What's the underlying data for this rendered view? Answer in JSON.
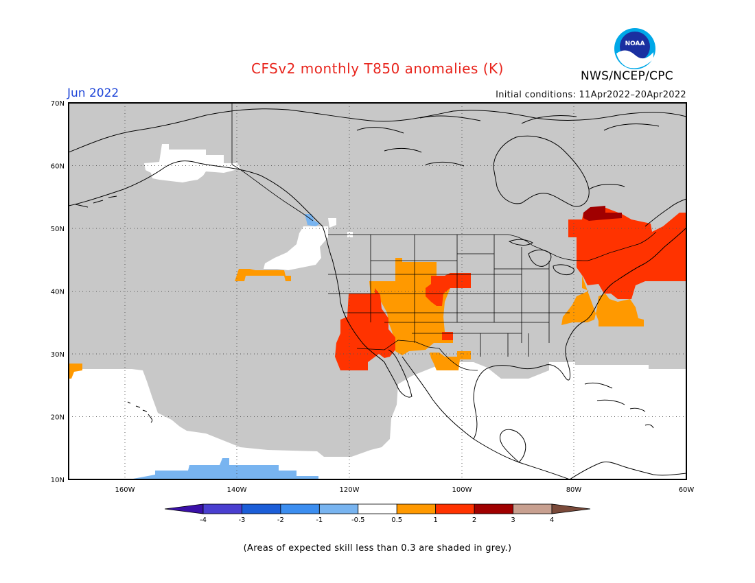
{
  "title": "CFSv2 monthly T850 anomalies (K)",
  "month": "Jun 2022",
  "initial_conditions": "Initial conditions: 11Apr2022–20Apr2022",
  "agency": "NWS/NCEP/CPC",
  "logo_text": "NOAA",
  "note": "(Areas of expected skill less than 0.3 are shaded in grey.)",
  "colors": {
    "skill_grey": "#c8c8c8",
    "neutral": "#ffffff",
    "orange": "#ff9900",
    "red_orange": "#ff3300",
    "dark_red": "#a00000",
    "light_blue": "#78b4f0",
    "coast": "#000000"
  },
  "map": {
    "lon_range": [
      -170,
      -60
    ],
    "lat_range": [
      10,
      70
    ],
    "lat_labels": [
      "70N",
      "60N",
      "50N",
      "40N",
      "30N",
      "20N",
      "10N"
    ],
    "lon_labels": [
      "160W",
      "140W",
      "120W",
      "100W",
      "80W",
      "60W"
    ]
  },
  "colorbar": {
    "labels": [
      "-4",
      "-3",
      "-2",
      "-1",
      "-0.5",
      "0.5",
      "1",
      "2",
      "3",
      "4"
    ],
    "colors": [
      "#3a10a8",
      "#4a3fd0",
      "#1c5ed8",
      "#3c8ef0",
      "#78b4f0",
      "#ffffff",
      "#ff9900",
      "#ff3300",
      "#a00000",
      "#c8a090",
      "#7a4a3a"
    ]
  }
}
